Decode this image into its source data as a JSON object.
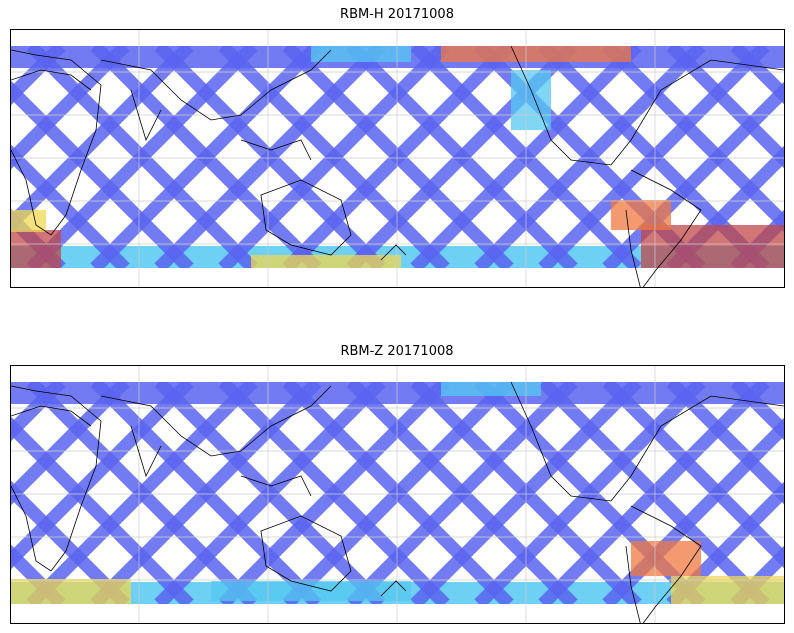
{
  "panels": [
    {
      "title": "RBM-H 20171008",
      "colormap": "jet"
    },
    {
      "title": "RBM-Z 20171008",
      "colormap": "jet"
    }
  ],
  "colors": {
    "low": "#5a64f0",
    "low_mid": "#55c8f0",
    "mid": "#a8f0a0",
    "mid_high": "#f0d850",
    "high": "#f07840",
    "max": "#c04848",
    "coastline": "#000000",
    "grid": "#cccccc"
  },
  "icons": {
    "coastline": "coastline-outline",
    "swath": "satellite-swath-pattern"
  }
}
